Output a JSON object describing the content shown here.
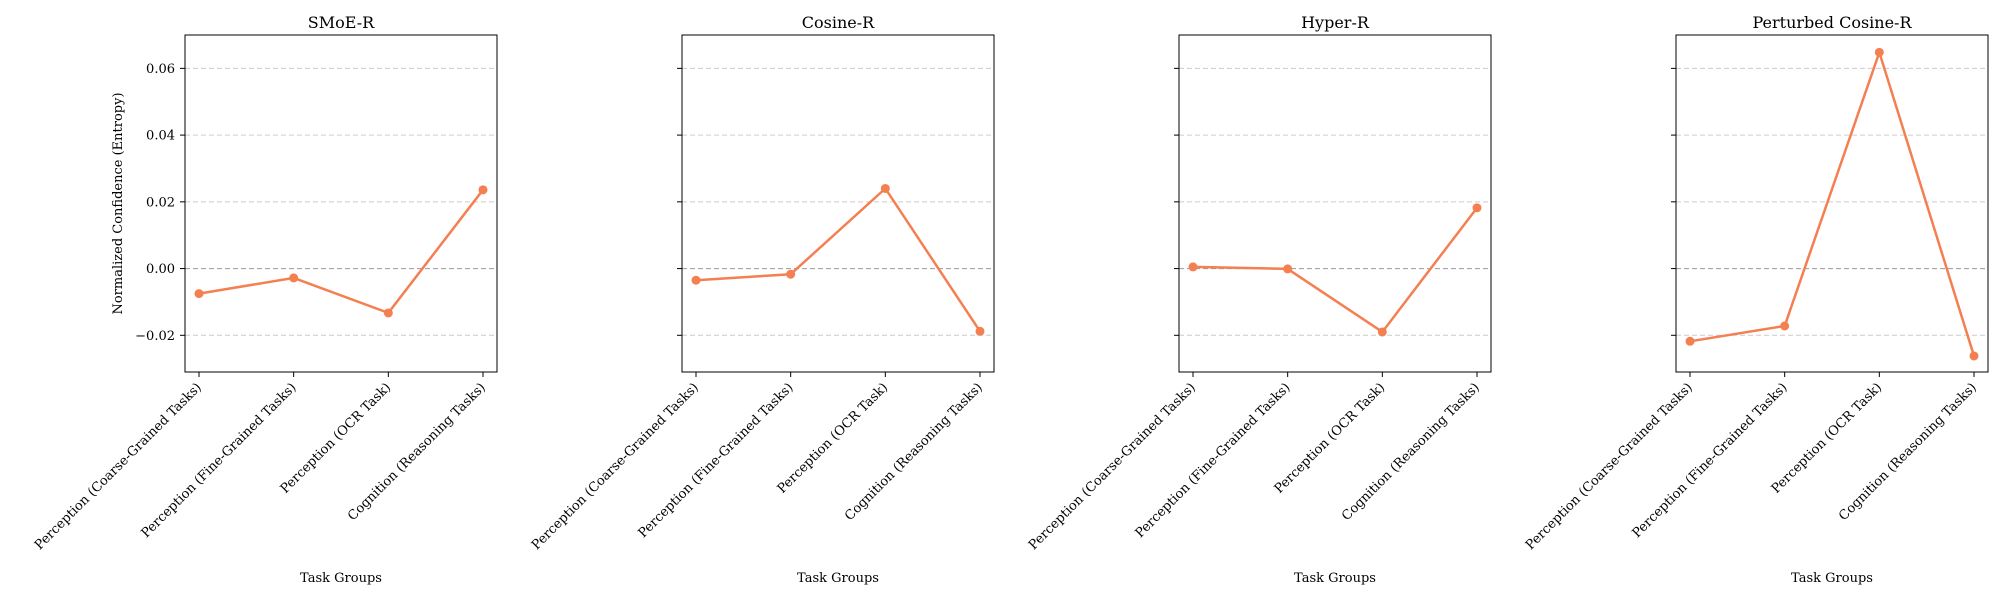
{
  "chart_data": [
    {
      "type": "line",
      "title": "SMoE-R",
      "xlabel": "Task Groups",
      "ylabel": "Normalized Confidence (Entropy)",
      "categories": [
        "Perception (Coarse-Grained Tasks)",
        "Perception (Fine-Grained Tasks)",
        "Perception (OCR Task)",
        "Cognition (Reasoning Tasks)"
      ],
      "values": [
        -0.0075,
        -0.0028,
        -0.0133,
        0.0236
      ],
      "ylim": [
        -0.031,
        0.07
      ],
      "yticks": [
        -0.02,
        0.0,
        0.02,
        0.04,
        0.06
      ],
      "ytick_labels": [
        "−0.02",
        "0.00",
        "0.02",
        "0.04",
        "0.06"
      ],
      "grid": true
    },
    {
      "type": "line",
      "title": "Cosine-R",
      "xlabel": "Task Groups",
      "ylabel": "",
      "categories": [
        "Perception (Coarse-Grained Tasks)",
        "Perception (Fine-Grained Tasks)",
        "Perception (OCR Task)",
        "Cognition (Reasoning Tasks)"
      ],
      "values": [
        -0.0035,
        -0.0017,
        0.024,
        -0.0188
      ],
      "ylim": [
        -0.031,
        0.07
      ],
      "yticks": [
        -0.02,
        0.0,
        0.02,
        0.04,
        0.06
      ],
      "ytick_labels": [],
      "grid": true
    },
    {
      "type": "line",
      "title": "Hyper-R",
      "xlabel": "Task Groups",
      "ylabel": "",
      "categories": [
        "Perception (Coarse-Grained Tasks)",
        "Perception (Fine-Grained Tasks)",
        "Perception (OCR Task)",
        "Cognition (Reasoning Tasks)"
      ],
      "values": [
        0.0005,
        -0.0001,
        -0.019,
        0.0182
      ],
      "ylim": [
        -0.031,
        0.07
      ],
      "yticks": [
        -0.02,
        0.0,
        0.02,
        0.04,
        0.06
      ],
      "ytick_labels": [],
      "grid": true
    },
    {
      "type": "line",
      "title": "Perturbed Cosine-R",
      "xlabel": "Task Groups",
      "ylabel": "",
      "categories": [
        "Perception (Coarse-Grained Tasks)",
        "Perception (Fine-Grained Tasks)",
        "Perception (OCR Task)",
        "Cognition (Reasoning Tasks)"
      ],
      "values": [
        -0.0218,
        -0.0172,
        0.0648,
        -0.0262
      ],
      "ylim": [
        -0.031,
        0.07
      ],
      "yticks": [
        -0.02,
        0.0,
        0.02,
        0.04,
        0.06
      ],
      "ytick_labels": [],
      "grid": true
    }
  ],
  "style": {
    "line_color": "#f47f51",
    "zero_line": true
  }
}
